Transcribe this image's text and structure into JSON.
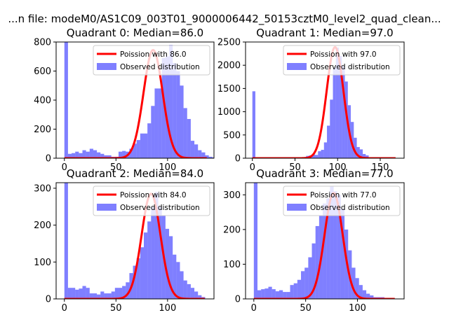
{
  "figure": {
    "suptitle": "...n file: modeM0/AS1C09_003T01_9000006442_50153cztM0_level2_quad_clean..."
  },
  "chart_data": [
    {
      "type": "bar+line",
      "title": "Quadrant 0: Median=86.0",
      "median": 86.0,
      "xlim": [
        -8,
        145
      ],
      "ylim": [
        0,
        800
      ],
      "xticks": [
        0,
        50,
        100
      ],
      "yticks": [
        0,
        200,
        400,
        600,
        800
      ],
      "hist_start": 0,
      "bin_width": 3.5,
      "hist_counts": [
        800,
        30,
        35,
        45,
        35,
        55,
        45,
        65,
        55,
        40,
        30,
        20,
        20,
        10,
        10,
        45,
        50,
        45,
        65,
        100,
        125,
        170,
        170,
        240,
        360,
        480,
        480,
        690,
        700,
        780,
        655,
        600,
        500,
        345,
        270,
        120,
        95,
        55,
        40,
        20,
        10,
        5
      ],
      "fit_mean": 86.0,
      "fit_sd": 9.27,
      "fit_peak": 745,
      "fit_range": [
        0,
        138
      ],
      "legend": {
        "line_label": "Poission with 86.0",
        "bar_label": "Observed distribution",
        "loc": "upper right"
      }
    },
    {
      "type": "bar+line",
      "title": "Quadrant 1: Median=97.0",
      "median": 97.0,
      "xlim": [
        -8,
        178
      ],
      "ylim": [
        0,
        2500
      ],
      "xticks": [
        0,
        50,
        100,
        150
      ],
      "yticks": [
        0,
        500,
        1000,
        1500,
        2000,
        2500
      ],
      "hist_start": 0,
      "bin_width": 3.5,
      "hist_counts": [
        1440,
        10,
        10,
        10,
        10,
        10,
        10,
        10,
        10,
        10,
        10,
        10,
        10,
        10,
        10,
        10,
        10,
        10,
        50,
        60,
        80,
        70,
        150,
        180,
        340,
        700,
        1260,
        1950,
        2380,
        2200,
        1980,
        1650,
        1140,
        780,
        440,
        240,
        190,
        90,
        60,
        20,
        10,
        5,
        5,
        5,
        5,
        5,
        5,
        5
      ],
      "fit_mean": 97.0,
      "fit_sd": 9.85,
      "fit_peak": 2390,
      "fit_range": [
        0,
        168
      ],
      "legend": {
        "line_label": "Poission with 97.0",
        "bar_label": "Observed distribution",
        "loc": "upper right"
      }
    },
    {
      "type": "bar+line",
      "title": "Quadrant 2: Median=84.0",
      "median": 84.0,
      "xlim": [
        -8,
        145
      ],
      "ylim": [
        0,
        315
      ],
      "xticks": [
        0,
        50,
        100
      ],
      "yticks": [
        0,
        100,
        200,
        300
      ],
      "hist_start": 0,
      "bin_width": 3.5,
      "hist_counts": [
        315,
        30,
        30,
        25,
        28,
        35,
        30,
        15,
        15,
        12,
        20,
        15,
        15,
        20,
        30,
        30,
        35,
        45,
        70,
        90,
        110,
        140,
        180,
        210,
        250,
        290,
        250,
        225,
        190,
        170,
        120,
        100,
        75,
        50,
        40,
        30,
        20,
        10,
        5
      ],
      "fit_mean": 84.0,
      "fit_sd": 9.17,
      "fit_peak": 285,
      "fit_range": [
        0,
        136
      ],
      "legend": {
        "line_label": "Poission with 84.0",
        "bar_label": "Observed distribution",
        "loc": "upper right"
      }
    },
    {
      "type": "bar+line",
      "title": "Quadrant 3: Median=77.0",
      "median": 77.0,
      "xlim": [
        -8,
        145
      ],
      "ylim": [
        0,
        335
      ],
      "xticks": [
        0,
        50,
        100
      ],
      "yticks": [
        0,
        100,
        200,
        300
      ],
      "hist_start": 0,
      "bin_width": 3.5,
      "hist_counts": [
        335,
        25,
        28,
        30,
        35,
        28,
        22,
        25,
        20,
        20,
        40,
        45,
        55,
        80,
        90,
        120,
        160,
        210,
        240,
        275,
        290,
        325,
        310,
        300,
        260,
        200,
        140,
        90,
        60,
        40,
        25,
        15,
        10,
        5,
        5,
        5
      ],
      "fit_mean": 77.0,
      "fit_sd": 8.77,
      "fit_peak": 305,
      "fit_range": [
        0,
        136
      ],
      "legend": {
        "line_label": "Poission with 77.0",
        "bar_label": "Observed distribution",
        "loc": "upper right"
      }
    }
  ]
}
